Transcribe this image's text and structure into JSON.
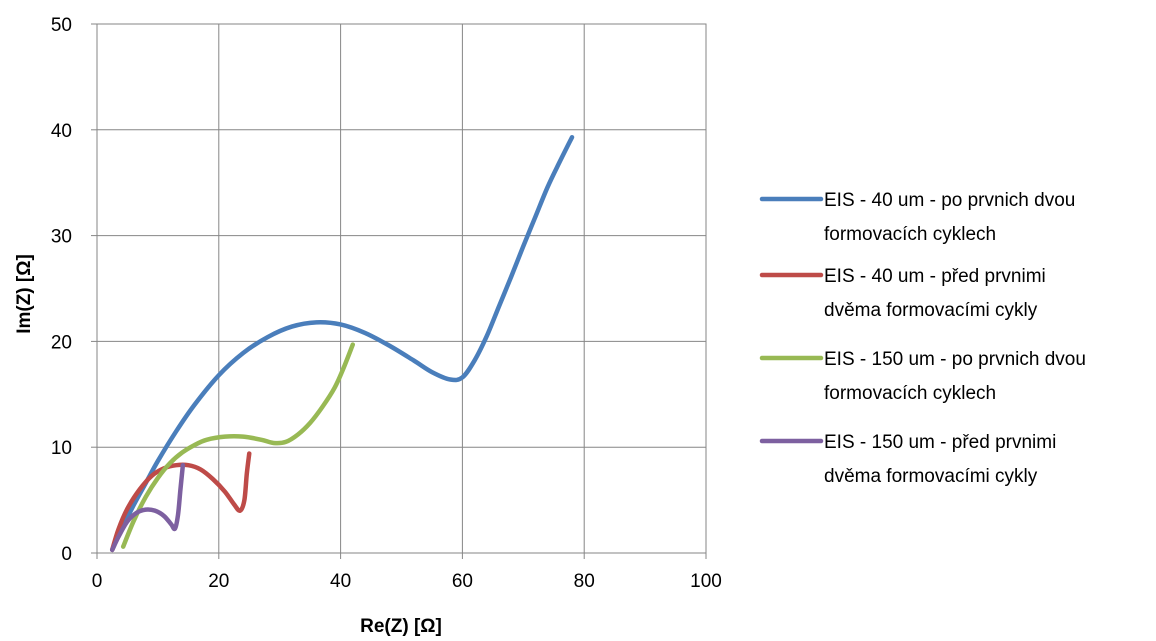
{
  "chart_data": {
    "type": "scatter",
    "xlabel": "Re(Z) [Ω]",
    "ylabel": "Im(Z) [Ω]",
    "xlim": [
      0,
      100
    ],
    "ylim": [
      0,
      50
    ],
    "x_ticks": [
      "0",
      "20",
      "40",
      "60",
      "80",
      "100"
    ],
    "y_ticks": [
      "0",
      "10",
      "20",
      "30",
      "40",
      "50"
    ],
    "grid": true,
    "legend_position": "right",
    "series": [
      {
        "name_lines": [
          "EIS - 40 um - po prvnich dvou",
          "formovacích cyklech"
        ],
        "color": "#4a7ebb",
        "points": [
          [
            2.5,
            0.3
          ],
          [
            4,
            2.2
          ],
          [
            6,
            4.5
          ],
          [
            8,
            6.6
          ],
          [
            10,
            8.7
          ],
          [
            13,
            11.5
          ],
          [
            16,
            14.0
          ],
          [
            20,
            16.8
          ],
          [
            24,
            18.9
          ],
          [
            28,
            20.4
          ],
          [
            32,
            21.4
          ],
          [
            36,
            21.8
          ],
          [
            40,
            21.6
          ],
          [
            44,
            20.8
          ],
          [
            48,
            19.6
          ],
          [
            52,
            18.2
          ],
          [
            55,
            17.1
          ],
          [
            58,
            16.4
          ],
          [
            60,
            16.6
          ],
          [
            62,
            18.2
          ],
          [
            64,
            20.5
          ],
          [
            66,
            23.3
          ],
          [
            68,
            26.1
          ],
          [
            70,
            29.0
          ],
          [
            72,
            31.8
          ],
          [
            74,
            34.6
          ],
          [
            76,
            37.0
          ],
          [
            78,
            39.3
          ]
        ]
      },
      {
        "name_lines": [
          "EIS - 40 um - před prvnimi",
          "dvěma formovacími cykly"
        ],
        "color": "#be4b48",
        "points": [
          [
            2.5,
            0.3
          ],
          [
            3.5,
            2.2
          ],
          [
            5,
            4.2
          ],
          [
            7,
            6.0
          ],
          [
            9,
            7.3
          ],
          [
            11,
            8.0
          ],
          [
            13,
            8.3
          ],
          [
            15,
            8.3
          ],
          [
            17,
            7.9
          ],
          [
            19,
            7.0
          ],
          [
            21,
            5.8
          ],
          [
            22.5,
            4.6
          ],
          [
            23.5,
            4.0
          ],
          [
            24.2,
            5.0
          ],
          [
            24.6,
            7.5
          ],
          [
            25,
            9.4
          ]
        ]
      },
      {
        "name_lines": [
          "EIS - 150 um - po prvnich dvou",
          "formovacích cyklech"
        ],
        "color": "#98b954",
        "points": [
          [
            4.3,
            0.6
          ],
          [
            6,
            3.0
          ],
          [
            8,
            5.3
          ],
          [
            10,
            7.1
          ],
          [
            12,
            8.5
          ],
          [
            14,
            9.5
          ],
          [
            16,
            10.2
          ],
          [
            18,
            10.7
          ],
          [
            21,
            11.0
          ],
          [
            24,
            11.0
          ],
          [
            27,
            10.7
          ],
          [
            29,
            10.4
          ],
          [
            31,
            10.5
          ],
          [
            33,
            11.2
          ],
          [
            35,
            12.3
          ],
          [
            37,
            13.8
          ],
          [
            39,
            15.6
          ],
          [
            40.5,
            17.5
          ],
          [
            42,
            19.7
          ]
        ]
      },
      {
        "name_lines": [
          "EIS - 150 um - před prvnimi",
          "dvěma formovacími cykly"
        ],
        "color": "#7d60a0",
        "points": [
          [
            2.5,
            0.3
          ],
          [
            3.5,
            1.5
          ],
          [
            5,
            3.0
          ],
          [
            6.5,
            3.8
          ],
          [
            8,
            4.1
          ],
          [
            9.5,
            4.0
          ],
          [
            11,
            3.5
          ],
          [
            12.2,
            2.7
          ],
          [
            12.8,
            2.3
          ],
          [
            13.3,
            3.6
          ],
          [
            13.7,
            6.0
          ],
          [
            14.1,
            8.3
          ]
        ]
      }
    ]
  }
}
